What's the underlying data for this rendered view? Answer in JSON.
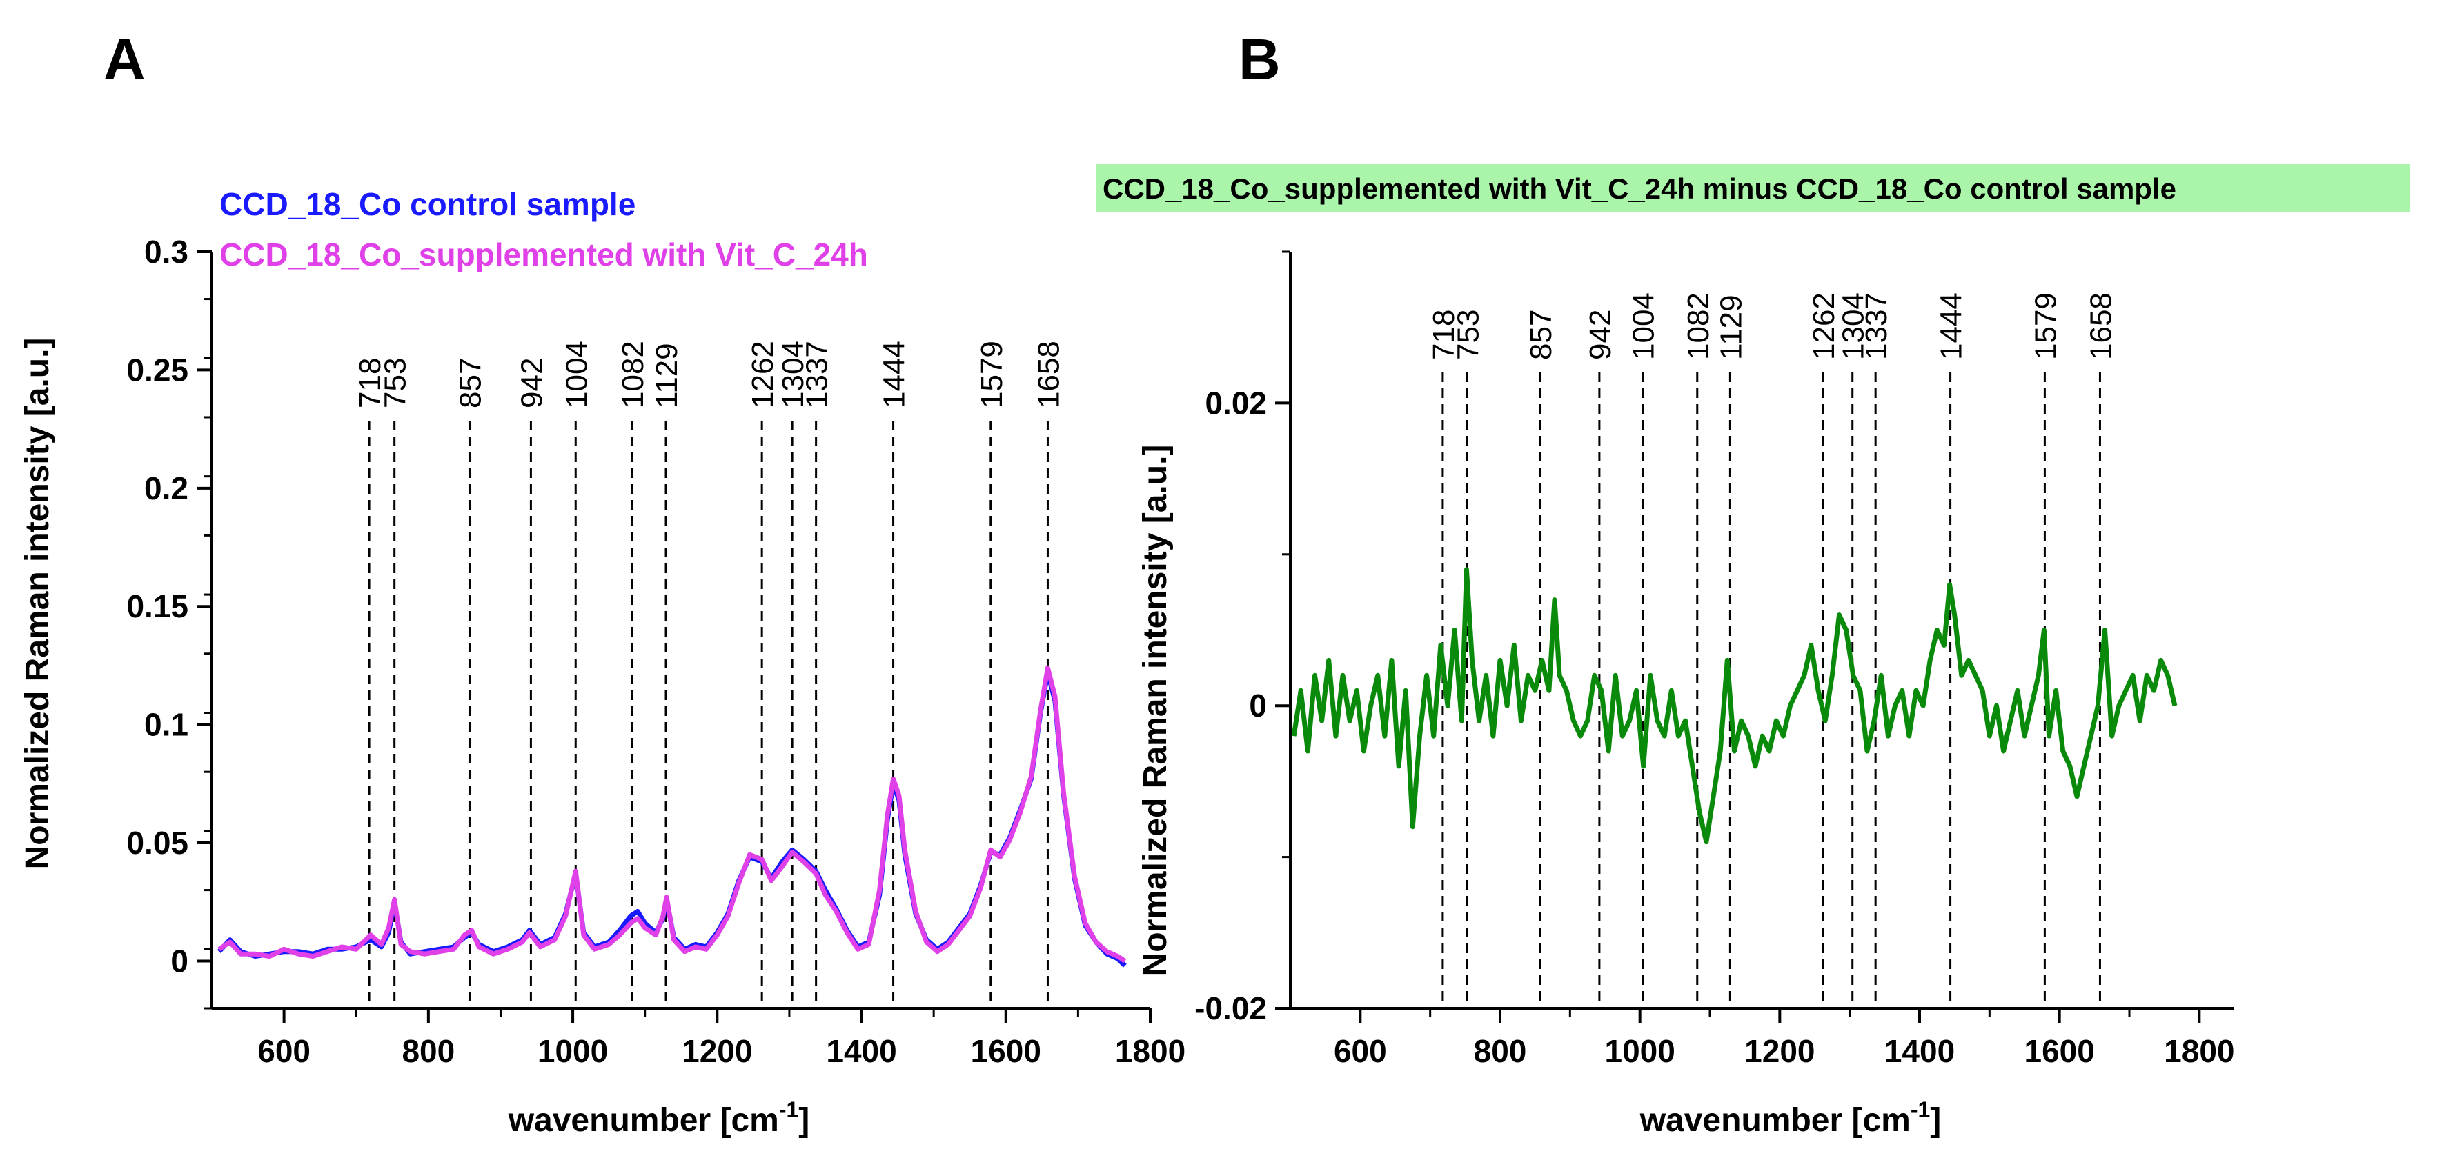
{
  "chart_data": [
    {
      "type": "line",
      "panel": "A",
      "xlabel": "wavenumber [cm",
      "xlabel_sup": "-1",
      "xlabel_end": "]",
      "ylabel": "Normalized Raman intensity [a.u.]",
      "xlim": [
        500,
        1800
      ],
      "ylim": [
        -0.02,
        0.3
      ],
      "xticks": [
        600,
        800,
        1000,
        1200,
        1400,
        1600,
        1800
      ],
      "xtick_labels": [
        "600",
        "800",
        "1000",
        "1200",
        "1400",
        "1600",
        "1800"
      ],
      "yticks": [
        0,
        0.05,
        0.1,
        0.15,
        0.2,
        0.25,
        0.3
      ],
      "ytick_labels": [
        "0",
        "0.05",
        "0.1",
        "0.15",
        "0.2",
        "0.25",
        "0.3"
      ],
      "peak_lines": [
        718,
        753,
        857,
        942,
        1004,
        1082,
        1129,
        1262,
        1304,
        1337,
        1444,
        1579,
        1658
      ],
      "peak_labels": [
        "718",
        "753",
        "857",
        "942",
        "1004",
        "1082",
        "1129",
        "1262",
        "1304",
        "1337",
        "1444",
        "1579",
        "1658"
      ],
      "series": [
        {
          "name": "CCD_18_Co control sample",
          "color": "#1a1aff",
          "x": [
            510,
            525,
            540,
            560,
            580,
            600,
            620,
            640,
            660,
            680,
            700,
            720,
            735,
            745,
            753,
            762,
            775,
            795,
            815,
            835,
            850,
            860,
            870,
            890,
            910,
            930,
            940,
            955,
            975,
            990,
            1004,
            1015,
            1030,
            1050,
            1065,
            1080,
            1090,
            1100,
            1115,
            1125,
            1130,
            1140,
            1155,
            1170,
            1185,
            1200,
            1215,
            1230,
            1245,
            1262,
            1275,
            1290,
            1304,
            1320,
            1337,
            1350,
            1365,
            1380,
            1395,
            1410,
            1425,
            1436,
            1444,
            1452,
            1460,
            1475,
            1490,
            1505,
            1520,
            1535,
            1550,
            1565,
            1579,
            1592,
            1605,
            1620,
            1635,
            1648,
            1658,
            1668,
            1680,
            1695,
            1710,
            1725,
            1740,
            1755,
            1765
          ],
          "y": [
            0.004,
            0.009,
            0.004,
            0.002,
            0.003,
            0.004,
            0.004,
            0.003,
            0.005,
            0.005,
            0.006,
            0.009,
            0.006,
            0.012,
            0.025,
            0.008,
            0.003,
            0.004,
            0.005,
            0.006,
            0.01,
            0.012,
            0.007,
            0.004,
            0.006,
            0.009,
            0.013,
            0.007,
            0.01,
            0.02,
            0.037,
            0.012,
            0.006,
            0.008,
            0.013,
            0.019,
            0.021,
            0.016,
            0.012,
            0.018,
            0.026,
            0.01,
            0.005,
            0.007,
            0.006,
            0.012,
            0.02,
            0.034,
            0.044,
            0.042,
            0.035,
            0.042,
            0.047,
            0.043,
            0.038,
            0.03,
            0.022,
            0.013,
            0.006,
            0.008,
            0.028,
            0.06,
            0.075,
            0.068,
            0.045,
            0.02,
            0.009,
            0.005,
            0.008,
            0.014,
            0.02,
            0.032,
            0.046,
            0.045,
            0.052,
            0.064,
            0.077,
            0.105,
            0.122,
            0.11,
            0.07,
            0.035,
            0.015,
            0.008,
            0.003,
            0.001,
            -0.002
          ]
        },
        {
          "name": "CCD_18_Co_supplemented with Vit_C_24h",
          "color": "#e040e8",
          "x": [
            510,
            525,
            540,
            560,
            580,
            600,
            620,
            640,
            660,
            680,
            700,
            720,
            735,
            745,
            753,
            762,
            775,
            795,
            815,
            835,
            850,
            860,
            870,
            890,
            910,
            930,
            940,
            955,
            975,
            990,
            1004,
            1015,
            1030,
            1050,
            1065,
            1080,
            1090,
            1100,
            1115,
            1125,
            1130,
            1140,
            1155,
            1170,
            1185,
            1200,
            1215,
            1230,
            1245,
            1262,
            1275,
            1290,
            1304,
            1320,
            1337,
            1350,
            1365,
            1380,
            1395,
            1410,
            1425,
            1436,
            1444,
            1452,
            1460,
            1475,
            1490,
            1505,
            1520,
            1535,
            1550,
            1565,
            1579,
            1592,
            1605,
            1620,
            1635,
            1648,
            1658,
            1668,
            1680,
            1695,
            1710,
            1725,
            1740,
            1755,
            1765
          ],
          "y": [
            0.005,
            0.008,
            0.003,
            0.003,
            0.002,
            0.005,
            0.003,
            0.002,
            0.004,
            0.006,
            0.005,
            0.011,
            0.007,
            0.014,
            0.026,
            0.007,
            0.004,
            0.003,
            0.004,
            0.005,
            0.011,
            0.013,
            0.006,
            0.003,
            0.005,
            0.008,
            0.012,
            0.006,
            0.009,
            0.019,
            0.038,
            0.011,
            0.005,
            0.007,
            0.011,
            0.016,
            0.018,
            0.014,
            0.011,
            0.019,
            0.027,
            0.009,
            0.004,
            0.006,
            0.005,
            0.011,
            0.019,
            0.033,
            0.045,
            0.043,
            0.034,
            0.04,
            0.046,
            0.042,
            0.037,
            0.028,
            0.021,
            0.012,
            0.005,
            0.007,
            0.03,
            0.062,
            0.077,
            0.07,
            0.047,
            0.021,
            0.008,
            0.004,
            0.007,
            0.013,
            0.019,
            0.031,
            0.047,
            0.044,
            0.051,
            0.063,
            0.078,
            0.106,
            0.124,
            0.112,
            0.071,
            0.036,
            0.016,
            0.008,
            0.004,
            0.002,
            0.0
          ]
        }
      ]
    },
    {
      "type": "line",
      "panel": "B",
      "title": "CCD_18_Co_supplemented with Vit_C_24h minus CCD_18_Co control sample",
      "title_bg": "#aaf5aa",
      "xlabel": "wavenumber [cm",
      "xlabel_sup": "-1",
      "xlabel_end": "]",
      "ylabel": "Normalized Raman intensity [a.u.]",
      "xlim": [
        500,
        1850
      ],
      "ylim": [
        -0.02,
        0.03
      ],
      "xticks": [
        600,
        800,
        1000,
        1200,
        1400,
        1600,
        1800
      ],
      "xtick_labels": [
        "600",
        "800",
        "1000",
        "1200",
        "1400",
        "1600",
        "1800"
      ],
      "yticks": [
        -0.02,
        0,
        0.02
      ],
      "ytick_labels": [
        "-0.02",
        "0",
        "0.02"
      ],
      "peak_lines": [
        718,
        753,
        857,
        942,
        1004,
        1082,
        1129,
        1262,
        1304,
        1337,
        1444,
        1579,
        1658
      ],
      "peak_labels": [
        "718",
        "753",
        "857",
        "942",
        "1004",
        "1082",
        "1129",
        "1262",
        "1304",
        "1337",
        "1444",
        "1579",
        "1658"
      ],
      "series": [
        {
          "name": "CCD_18_Co_supplemented with Vit_C_24h minus CCD_18_Co control sample",
          "color": "#0a8a0a",
          "x": [
            505,
            515,
            525,
            535,
            545,
            555,
            565,
            575,
            585,
            595,
            605,
            615,
            625,
            635,
            645,
            655,
            665,
            675,
            685,
            695,
            705,
            715,
            725,
            735,
            745,
            752,
            760,
            770,
            780,
            790,
            800,
            810,
            820,
            830,
            840,
            850,
            860,
            870,
            878,
            885,
            895,
            905,
            915,
            925,
            935,
            945,
            955,
            965,
            975,
            985,
            995,
            1005,
            1015,
            1025,
            1035,
            1045,
            1055,
            1065,
            1075,
            1085,
            1095,
            1105,
            1115,
            1125,
            1135,
            1145,
            1155,
            1165,
            1175,
            1185,
            1195,
            1205,
            1215,
            1225,
            1235,
            1245,
            1255,
            1265,
            1275,
            1285,
            1295,
            1305,
            1315,
            1325,
            1335,
            1345,
            1355,
            1365,
            1375,
            1385,
            1395,
            1405,
            1415,
            1425,
            1435,
            1443,
            1450,
            1460,
            1470,
            1480,
            1490,
            1500,
            1510,
            1520,
            1530,
            1540,
            1550,
            1560,
            1570,
            1578,
            1585,
            1595,
            1605,
            1615,
            1625,
            1635,
            1645,
            1655,
            1665,
            1675,
            1685,
            1695,
            1705,
            1715,
            1725,
            1735,
            1745,
            1755,
            1765
          ],
          "y": [
            -0.002,
            0.001,
            -0.003,
            0.002,
            -0.001,
            0.003,
            -0.002,
            0.002,
            -0.001,
            0.001,
            -0.003,
            0.0,
            0.002,
            -0.002,
            0.003,
            -0.004,
            0.001,
            -0.008,
            -0.002,
            0.002,
            -0.002,
            0.004,
            0.0,
            0.005,
            -0.001,
            0.009,
            0.003,
            -0.001,
            0.002,
            -0.002,
            0.003,
            0.0,
            0.004,
            -0.001,
            0.002,
            0.001,
            0.003,
            0.001,
            0.007,
            0.002,
            0.001,
            -0.001,
            -0.002,
            -0.001,
            0.002,
            0.001,
            -0.003,
            0.002,
            -0.002,
            -0.001,
            0.001,
            -0.004,
            0.002,
            -0.001,
            -0.002,
            0.001,
            -0.002,
            -0.001,
            -0.004,
            -0.007,
            -0.009,
            -0.006,
            -0.003,
            0.003,
            -0.003,
            -0.001,
            -0.002,
            -0.004,
            -0.002,
            -0.003,
            -0.001,
            -0.002,
            0.0,
            0.001,
            0.002,
            0.004,
            0.001,
            -0.001,
            0.002,
            0.006,
            0.005,
            0.002,
            0.001,
            -0.003,
            -0.001,
            0.002,
            -0.002,
            0.0,
            0.001,
            -0.002,
            0.001,
            0.0,
            0.003,
            0.005,
            0.004,
            0.008,
            0.006,
            0.002,
            0.003,
            0.002,
            0.001,
            -0.002,
            0.0,
            -0.003,
            -0.001,
            0.001,
            -0.002,
            0.0,
            0.002,
            0.005,
            -0.002,
            0.001,
            -0.003,
            -0.004,
            -0.006,
            -0.004,
            -0.002,
            0.0,
            0.005,
            -0.002,
            0.0,
            0.001,
            0.002,
            -0.001,
            0.002,
            0.001,
            0.003,
            0.002,
            0.0
          ]
        }
      ]
    }
  ]
}
